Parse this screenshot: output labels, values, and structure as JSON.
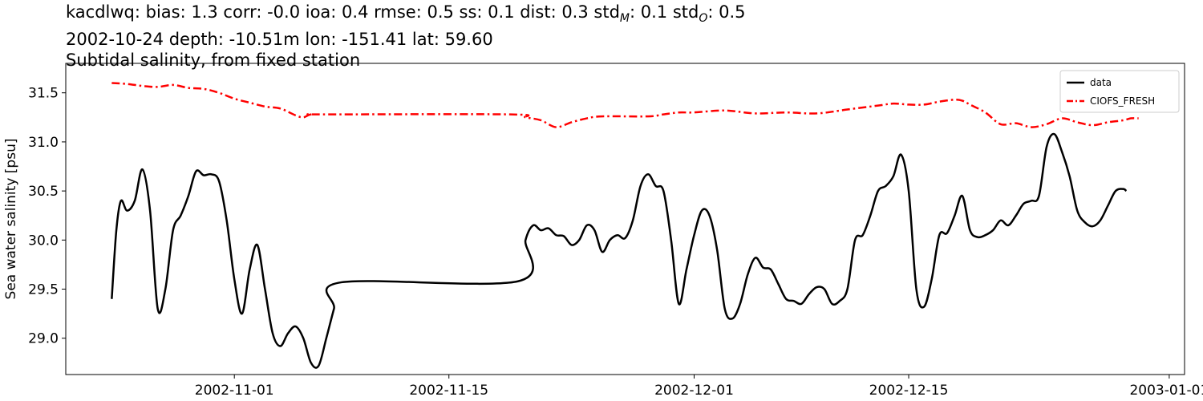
{
  "title": {
    "line1_prefix": "kacdlwq: bias: 1.3  corr: -0.0  ioa: 0.4  rmse: 0.5  ss: 0.1  dist: 0.3  std",
    "std_m_sub": "M",
    "std_m_value": ": 0.1  std",
    "std_o_sub": "O",
    "std_o_value": ": 0.5",
    "line2": "2002-10-24 depth: -10.51m lon: -151.41 lat: 59.60",
    "line3": "Subtidal salinity, from fixed station"
  },
  "chart_data": {
    "type": "line",
    "ylabel": "Sea water salinity [psu]",
    "xlabel": "",
    "ylim": [
      28.63,
      31.8
    ],
    "xlim": [
      "2002-10-21",
      "2003-01-02"
    ],
    "yticks": [
      29.0,
      29.5,
      30.0,
      30.5,
      31.0,
      31.5
    ],
    "ytick_labels": [
      "29.0",
      "29.5",
      "30.0",
      "30.5",
      "31.0",
      "31.5"
    ],
    "xticks": [
      "2002-11-01",
      "2002-11-15",
      "2002-12-01",
      "2002-12-15",
      "2003-01-01"
    ],
    "xtick_labels": [
      "2002-11-01",
      "2002-11-15",
      "2002-12-01",
      "2002-12-15",
      "2003-01-01"
    ],
    "grid": false,
    "legend_position": "top-right",
    "series": [
      {
        "name": "data",
        "color": "#000000",
        "style": "solid",
        "points": [
          [
            "2002-10-24",
            29.4
          ],
          [
            "2002-10-24.3",
            30.1
          ],
          [
            "2002-10-24.6",
            30.4
          ],
          [
            "2002-10-25",
            30.3
          ],
          [
            "2002-10-25.5",
            30.4
          ],
          [
            "2002-10-26",
            30.72
          ],
          [
            "2002-10-26.5",
            30.3
          ],
          [
            "2002-10-27",
            29.3
          ],
          [
            "2002-10-27.5",
            29.5
          ],
          [
            "2002-10-28",
            30.1
          ],
          [
            "2002-10-28.5",
            30.25
          ],
          [
            "2002-10-29",
            30.45
          ],
          [
            "2002-10-29.5",
            30.7
          ],
          [
            "2002-10-30",
            30.66
          ],
          [
            "2002-10-30.5",
            30.67
          ],
          [
            "2002-10-31",
            30.6
          ],
          [
            "2002-10-31.5",
            30.2
          ],
          [
            "2002-11-01",
            29.6
          ],
          [
            "2002-11-01.5",
            29.25
          ],
          [
            "2002-11-02",
            29.7
          ],
          [
            "2002-11-02.5",
            29.95
          ],
          [
            "2002-11-03",
            29.5
          ],
          [
            "2002-11-03.5",
            29.05
          ],
          [
            "2002-11-04",
            28.92
          ],
          [
            "2002-11-04.5",
            29.05
          ],
          [
            "2002-11-05",
            29.12
          ],
          [
            "2002-11-05.5",
            29.0
          ],
          [
            "2002-11-06",
            28.75
          ],
          [
            "2002-11-06.5",
            28.72
          ],
          [
            "2002-11-07",
            29.0
          ],
          [
            "2002-11-07.5",
            29.3
          ],
          [
            "2002-11-08",
            29.57
          ],
          [
            "2002-11-19.5",
            29.58
          ],
          [
            "2002-11-20",
            30.0
          ],
          [
            "2002-11-20.5",
            30.15
          ],
          [
            "2002-11-21",
            30.1
          ],
          [
            "2002-11-21.5",
            30.12
          ],
          [
            "2002-11-22",
            30.05
          ],
          [
            "2002-11-22.5",
            30.04
          ],
          [
            "2002-11-23",
            29.95
          ],
          [
            "2002-11-23.5",
            30.0
          ],
          [
            "2002-11-24",
            30.15
          ],
          [
            "2002-11-24.5",
            30.1
          ],
          [
            "2002-11-25",
            29.88
          ],
          [
            "2002-11-25.5",
            30.0
          ],
          [
            "2002-11-26",
            30.05
          ],
          [
            "2002-11-26.5",
            30.02
          ],
          [
            "2002-11-27",
            30.2
          ],
          [
            "2002-11-27.5",
            30.55
          ],
          [
            "2002-11-28",
            30.67
          ],
          [
            "2002-11-28.5",
            30.55
          ],
          [
            "2002-11-29",
            30.5
          ],
          [
            "2002-11-29.5",
            30.0
          ],
          [
            "2002-11-30",
            29.35
          ],
          [
            "2002-11-30.5",
            29.7
          ],
          [
            "2002-12-01",
            30.05
          ],
          [
            "2002-12-01.5",
            30.3
          ],
          [
            "2002-12-02",
            30.25
          ],
          [
            "2002-12-02.5",
            29.9
          ],
          [
            "2002-12-03",
            29.3
          ],
          [
            "2002-12-03.5",
            29.2
          ],
          [
            "2002-12-04",
            29.35
          ],
          [
            "2002-12-04.5",
            29.65
          ],
          [
            "2002-12-05",
            29.82
          ],
          [
            "2002-12-05.5",
            29.72
          ],
          [
            "2002-12-06",
            29.7
          ],
          [
            "2002-12-06.5",
            29.55
          ],
          [
            "2002-12-07",
            29.4
          ],
          [
            "2002-12-07.5",
            29.38
          ],
          [
            "2002-12-08",
            29.35
          ],
          [
            "2002-12-08.5",
            29.45
          ],
          [
            "2002-12-09",
            29.52
          ],
          [
            "2002-12-09.5",
            29.5
          ],
          [
            "2002-12-10",
            29.35
          ],
          [
            "2002-12-10.5",
            29.38
          ],
          [
            "2002-12-11",
            29.5
          ],
          [
            "2002-12-11.5",
            30.0
          ],
          [
            "2002-12-12",
            30.05
          ],
          [
            "2002-12-12.5",
            30.25
          ],
          [
            "2002-12-13",
            30.5
          ],
          [
            "2002-12-13.5",
            30.55
          ],
          [
            "2002-12-14",
            30.65
          ],
          [
            "2002-12-14.5",
            30.87
          ],
          [
            "2002-12-15",
            30.5
          ],
          [
            "2002-12-15.5",
            29.5
          ],
          [
            "2002-12-16",
            29.32
          ],
          [
            "2002-12-16.5",
            29.6
          ],
          [
            "2002-12-17",
            30.05
          ],
          [
            "2002-12-17.5",
            30.07
          ],
          [
            "2002-12-18",
            30.25
          ],
          [
            "2002-12-18.5",
            30.45
          ],
          [
            "2002-12-19",
            30.1
          ],
          [
            "2002-12-19.5",
            30.03
          ],
          [
            "2002-12-20",
            30.05
          ],
          [
            "2002-12-20.5",
            30.1
          ],
          [
            "2002-12-21",
            30.2
          ],
          [
            "2002-12-21.5",
            30.15
          ],
          [
            "2002-12-22",
            30.25
          ],
          [
            "2002-12-22.5",
            30.37
          ],
          [
            "2002-12-23",
            30.4
          ],
          [
            "2002-12-23.5",
            30.45
          ],
          [
            "2002-12-24",
            30.95
          ],
          [
            "2002-12-24.5",
            31.08
          ],
          [
            "2002-12-25",
            30.9
          ],
          [
            "2002-12-25.5",
            30.65
          ],
          [
            "2002-12-26",
            30.3
          ],
          [
            "2002-12-26.5",
            30.18
          ],
          [
            "2002-12-27",
            30.14
          ],
          [
            "2002-12-27.5",
            30.2
          ],
          [
            "2002-12-28",
            30.35
          ],
          [
            "2002-12-28.5",
            30.5
          ],
          [
            "2002-12-29",
            30.52
          ],
          [
            "2002-12-29.2",
            30.5
          ]
        ]
      },
      {
        "name": "CIOFS_FRESH",
        "color": "#ff0000",
        "style": "dashdot",
        "points": [
          [
            "2002-10-24",
            31.6
          ],
          [
            "2002-10-25",
            31.59
          ],
          [
            "2002-10-26",
            31.57
          ],
          [
            "2002-10-27",
            31.56
          ],
          [
            "2002-10-28",
            31.58
          ],
          [
            "2002-10-29",
            31.55
          ],
          [
            "2002-10-30",
            31.54
          ],
          [
            "2002-10-31",
            31.5
          ],
          [
            "2002-11-01",
            31.44
          ],
          [
            "2002-11-02",
            31.4
          ],
          [
            "2002-11-03",
            31.36
          ],
          [
            "2002-11-04",
            31.34
          ],
          [
            "2002-11-05",
            31.27
          ],
          [
            "2002-11-05.5",
            31.25
          ],
          [
            "2002-11-06",
            31.28
          ],
          [
            "2002-11-07",
            31.28
          ],
          [
            "2002-11-19",
            31.28
          ],
          [
            "2002-11-20",
            31.25
          ],
          [
            "2002-11-21",
            31.22
          ],
          [
            "2002-11-22",
            31.15
          ],
          [
            "2002-11-23",
            31.2
          ],
          [
            "2002-11-24",
            31.24
          ],
          [
            "2002-11-25",
            31.26
          ],
          [
            "2002-11-28",
            31.26
          ],
          [
            "2002-11-29",
            31.28
          ],
          [
            "2002-11-30",
            31.3
          ],
          [
            "2002-12-01",
            31.3
          ],
          [
            "2002-12-03",
            31.32
          ],
          [
            "2002-12-05",
            31.29
          ],
          [
            "2002-12-07",
            31.3
          ],
          [
            "2002-12-09",
            31.29
          ],
          [
            "2002-12-11",
            31.33
          ],
          [
            "2002-12-13",
            31.37
          ],
          [
            "2002-12-14",
            31.39
          ],
          [
            "2002-12-15",
            31.38
          ],
          [
            "2002-12-16",
            31.38
          ],
          [
            "2002-12-17",
            31.41
          ],
          [
            "2002-12-18",
            31.43
          ],
          [
            "2002-12-18.5",
            31.42
          ],
          [
            "2002-12-19",
            31.38
          ],
          [
            "2002-12-20",
            31.3
          ],
          [
            "2002-12-21",
            31.18
          ],
          [
            "2002-12-22",
            31.19
          ],
          [
            "2002-12-23",
            31.15
          ],
          [
            "2002-12-24",
            31.18
          ],
          [
            "2002-12-25",
            31.24
          ],
          [
            "2002-12-26",
            31.2
          ],
          [
            "2002-12-27",
            31.17
          ],
          [
            "2002-12-28",
            31.2
          ],
          [
            "2002-12-29",
            31.22
          ],
          [
            "2002-12-29.5",
            31.24
          ],
          [
            "2002-12-30",
            31.24
          ]
        ]
      }
    ]
  }
}
